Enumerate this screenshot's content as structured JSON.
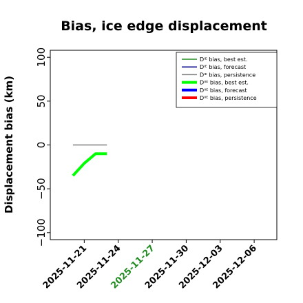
{
  "chart_data": {
    "type": "line",
    "title": "Bias, ice edge displacement",
    "xlabel": "",
    "ylabel": "Displacement bias (km)",
    "xlim": [
      "2025-11-18",
      "2025-12-08"
    ],
    "ylim": [
      -108,
      108
    ],
    "yticks": [
      100,
      50,
      0,
      -50,
      -100
    ],
    "yticks_labels": [
      "100",
      "50",
      "0",
      "−50",
      "−100"
    ],
    "xticks": [
      "2025-11-21",
      "2025-11-24",
      "2025-11-27",
      "2025-11-30",
      "2025-12-03",
      "2025-12-06"
    ],
    "xtick_colors": [
      "#000000",
      "#000000",
      "#228B22",
      "#000000",
      "#000000",
      "#000000"
    ],
    "grid": false,
    "legend_position": "top-right",
    "series": [
      {
        "name": "Dᴵᴱ bias, best est.",
        "color": "#228B22",
        "linewidth": 1.5,
        "x": [],
        "y": []
      },
      {
        "name": "Dᴵᴱ bias, forecast",
        "color": "#00008B",
        "linewidth": 1.5,
        "x": [],
        "y": []
      },
      {
        "name": "Dᴵᴱ bias, persistence",
        "color": "#7f7f7f",
        "linewidth": 1.5,
        "x": [
          "2025-11-20",
          "2025-11-23"
        ],
        "y": [
          0,
          0
        ]
      },
      {
        "name": "Dᴵᴵᴱ bias, best est.",
        "color": "#00ff00",
        "linewidth": 4,
        "x": [
          "2025-11-20",
          "2025-11-21",
          "2025-11-22",
          "2025-11-23"
        ],
        "y": [
          -35,
          -21,
          -10,
          -10
        ]
      },
      {
        "name": "Dᴵᴵᴱ bias, forecast",
        "color": "#0000ff",
        "linewidth": 4,
        "x": [],
        "y": []
      },
      {
        "name": "Dᴵᴵᴱ bias, persistence",
        "color": "#ff0000",
        "linewidth": 4,
        "x": [],
        "y": []
      }
    ]
  }
}
